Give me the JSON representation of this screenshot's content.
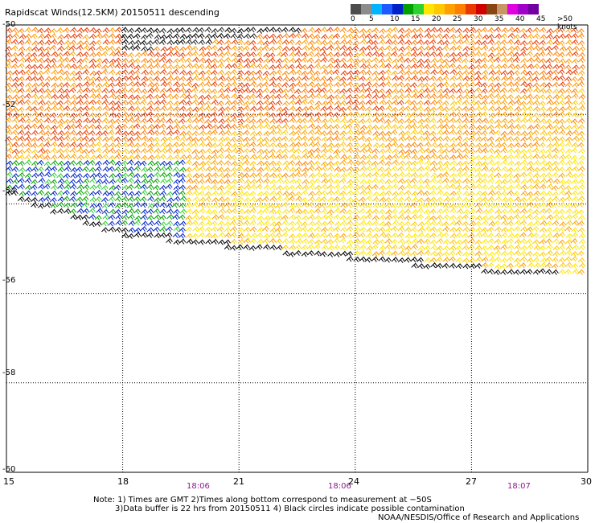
{
  "title": "Rapidscat Winds(12.5KM) 20150511 descending",
  "legend": {
    "labels": [
      "0",
      "5",
      "10",
      "15",
      "20",
      "25",
      "30",
      "35",
      "40",
      "45",
      ">50 knots"
    ],
    "colors": [
      "#4d4d4d",
      "#8c8c8c",
      "#00b4ff",
      "#1e5aff",
      "#0020c8",
      "#00a000",
      "#2fd12f",
      "#ffe600",
      "#ffc800",
      "#ffa000",
      "#ff8000",
      "#e83a00",
      "#d00000",
      "#8b4513",
      "#c89664",
      "#e000e0",
      "#a000c8",
      "#7000a0"
    ]
  },
  "axes": {
    "lat_labels": [
      "-50",
      "-52",
      "-54",
      "-56",
      "-58",
      "-60"
    ],
    "lon_labels": [
      "15",
      "18",
      "21",
      "24",
      "27",
      "30"
    ],
    "time_labels": [
      "18:06",
      "18:06",
      "18:07"
    ]
  },
  "notes": {
    "line1": "Note: 1) Times are GMT 2)Times along bottom correspond to measurement at −50S",
    "line2": "3)Data buffer is 22 hrs from 20150511 4) Black circles indicate possible contamination",
    "line3": "NOAA/NESDIS/Office of Research and Applications"
  },
  "map_data": {
    "lon_range": [
      15,
      30
    ],
    "lat_range": [
      -60,
      -50
    ],
    "barb_bands": [
      {
        "zone": "north",
        "speed_range_knots": [
          40,
          50
        ],
        "color_name": "black"
      },
      {
        "zone": "north-central",
        "speed_range_knots": [
          25,
          35
        ],
        "color_name": "orange/red"
      },
      {
        "zone": "central",
        "speed_range_knots": [
          20,
          30
        ],
        "color_name": "yellow/orange"
      },
      {
        "zone": "southwest",
        "speed_range_knots": [
          5,
          15
        ],
        "color_name": "blue/green"
      }
    ]
  }
}
